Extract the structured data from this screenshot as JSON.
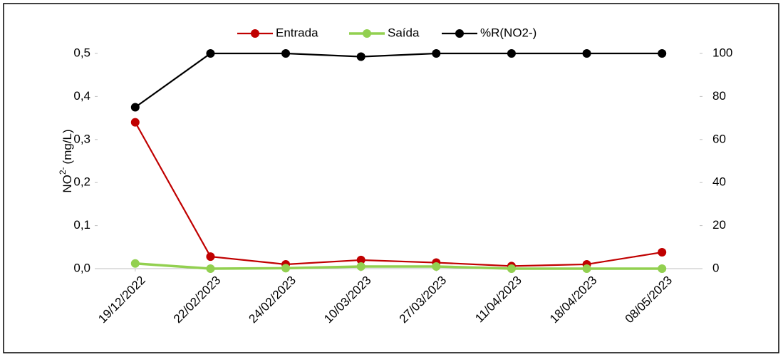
{
  "chart_data": {
    "type": "line",
    "ylabel": {
      "text": "NO",
      "superscript": "2-",
      "unit": "(mg/L)"
    },
    "categories": [
      "19/12/2022",
      "22/02/2023",
      "24/02/2023",
      "10/03/2023",
      "27/03/2023",
      "11/04/2023",
      "18/04/2023",
      "08/05/2023"
    ],
    "series": [
      {
        "name": "Entrada",
        "color": "#c00000",
        "values": [
          0.34,
          0.028,
          0.01,
          0.02,
          0.014,
          0.006,
          0.01,
          0.038
        ]
      },
      {
        "name": "Saída",
        "color": "#92d050",
        "values": [
          0.012,
          0.0,
          0.001,
          0.005,
          0.005,
          0.0,
          0.0,
          0.0
        ]
      },
      {
        "name": "%R(NO2-)",
        "color": "#000000",
        "axis": "y2",
        "values": [
          75,
          100,
          100,
          98.5,
          100,
          100,
          100,
          100
        ]
      }
    ],
    "ylim": [
      0,
      0.5
    ],
    "yticks": [
      {
        "value": 0,
        "label": "0,0"
      },
      {
        "value": 0.1,
        "label": "0,1"
      },
      {
        "value": 0.2,
        "label": "0,2"
      },
      {
        "value": 0.3,
        "label": "0,3"
      },
      {
        "value": 0.4,
        "label": "0,4"
      },
      {
        "value": 0.5,
        "label": "0,5"
      }
    ],
    "y2lim": [
      0,
      100
    ],
    "y2ticks": [
      0,
      20,
      40,
      60,
      80,
      100
    ],
    "legend": "top",
    "grid": false
  }
}
